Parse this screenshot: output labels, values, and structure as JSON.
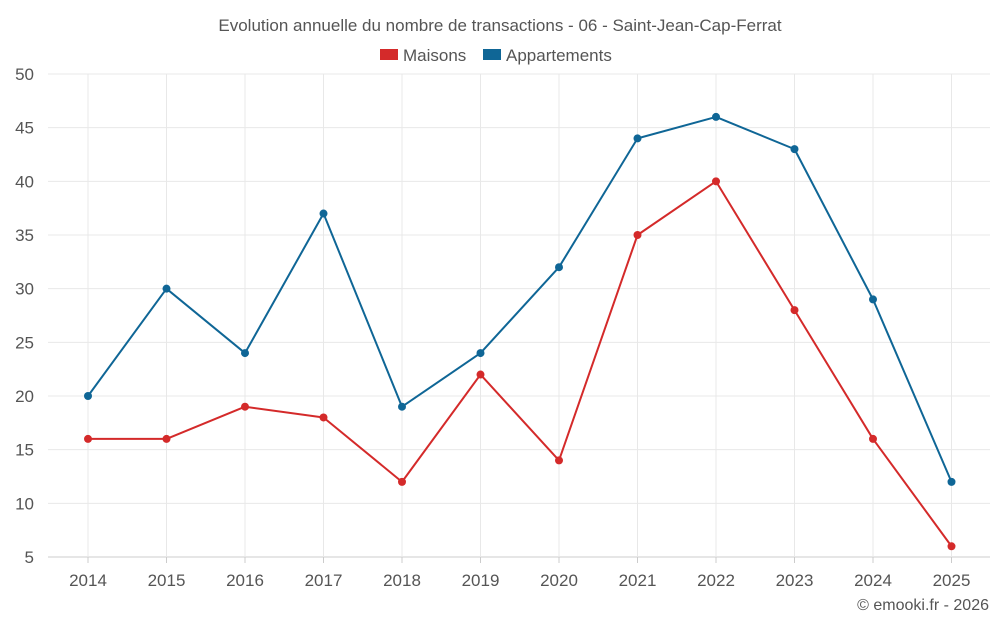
{
  "chart_data": {
    "type": "line",
    "title": "Evolution annuelle du nombre de transactions - 06 - Saint-Jean-Cap-Ferrat",
    "categories": [
      "2014",
      "2015",
      "2016",
      "2017",
      "2018",
      "2019",
      "2020",
      "2021",
      "2022",
      "2023",
      "2024",
      "2025"
    ],
    "series": [
      {
        "name": "Maisons",
        "color": "#d42a2a",
        "values": [
          16,
          16,
          19,
          18,
          12,
          22,
          14,
          35,
          40,
          28,
          16,
          6
        ]
      },
      {
        "name": "Appartements",
        "color": "#0f6696",
        "values": [
          20,
          30,
          24,
          37,
          19,
          24,
          32,
          44,
          46,
          43,
          29,
          12
        ]
      }
    ],
    "yticks": [
      5,
      10,
      15,
      20,
      25,
      30,
      35,
      40,
      45,
      50
    ],
    "ylim": [
      5,
      50
    ],
    "xlabel": "",
    "ylabel": "",
    "grid": true,
    "legend_position": "top-center"
  },
  "credit": "© emooki.fr - 2026"
}
